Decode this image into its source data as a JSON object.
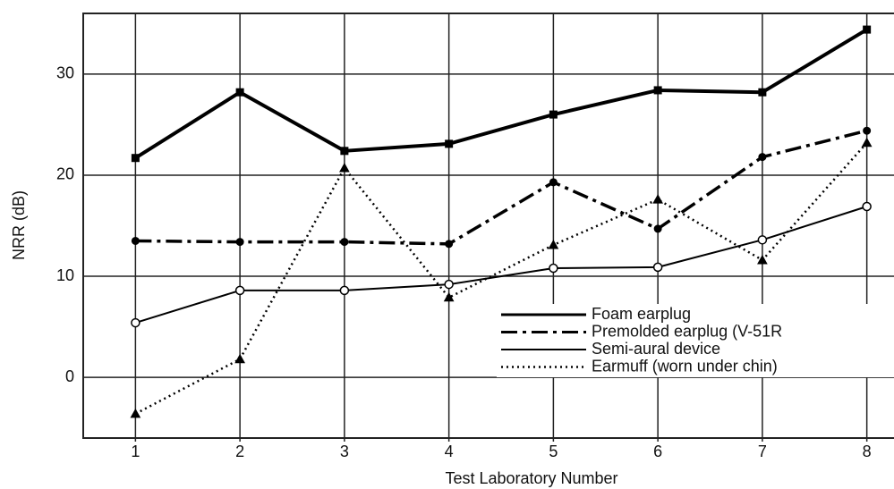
{
  "chart_data": {
    "type": "line",
    "xlabel": "Test Laboratory Number",
    "ylabel": "NRR (dB)",
    "x": [
      1,
      2,
      3,
      4,
      5,
      6,
      7,
      8
    ],
    "xlim": [
      0.5,
      8.26
    ],
    "xticks": [
      1,
      2,
      3,
      4,
      5,
      6,
      7,
      8
    ],
    "ylim": [
      -6,
      36
    ],
    "yticks": [
      0,
      10,
      20,
      30
    ],
    "grid": true,
    "legend": "lower right",
    "series": [
      {
        "name": "Foam earplug",
        "color": "#000000",
        "style": "solid",
        "width": 4,
        "marker": "square",
        "values": [
          21.7,
          28.2,
          22.4,
          23.1,
          26.0,
          28.4,
          28.2,
          34.4
        ]
      },
      {
        "name": "Premolded earplug (V-51R",
        "color": "#000000",
        "style": "dashdot",
        "width": 3.5,
        "marker": "dot",
        "values": [
          13.5,
          13.4,
          13.4,
          13.2,
          19.3,
          14.7,
          21.8,
          24.4
        ]
      },
      {
        "name": "Semi-aural device",
        "color": "#000000",
        "style": "solid",
        "width": 2,
        "marker": "circle",
        "values": [
          5.4,
          8.6,
          8.6,
          9.2,
          10.8,
          10.9,
          13.6,
          16.9
        ]
      },
      {
        "name": "Earmuff (worn under chin)",
        "color": "#000000",
        "style": "dotted",
        "width": 2.5,
        "marker": "triangle",
        "values": [
          -3.6,
          1.8,
          20.7,
          7.9,
          13.1,
          17.6,
          11.6,
          23.2
        ]
      }
    ]
  }
}
